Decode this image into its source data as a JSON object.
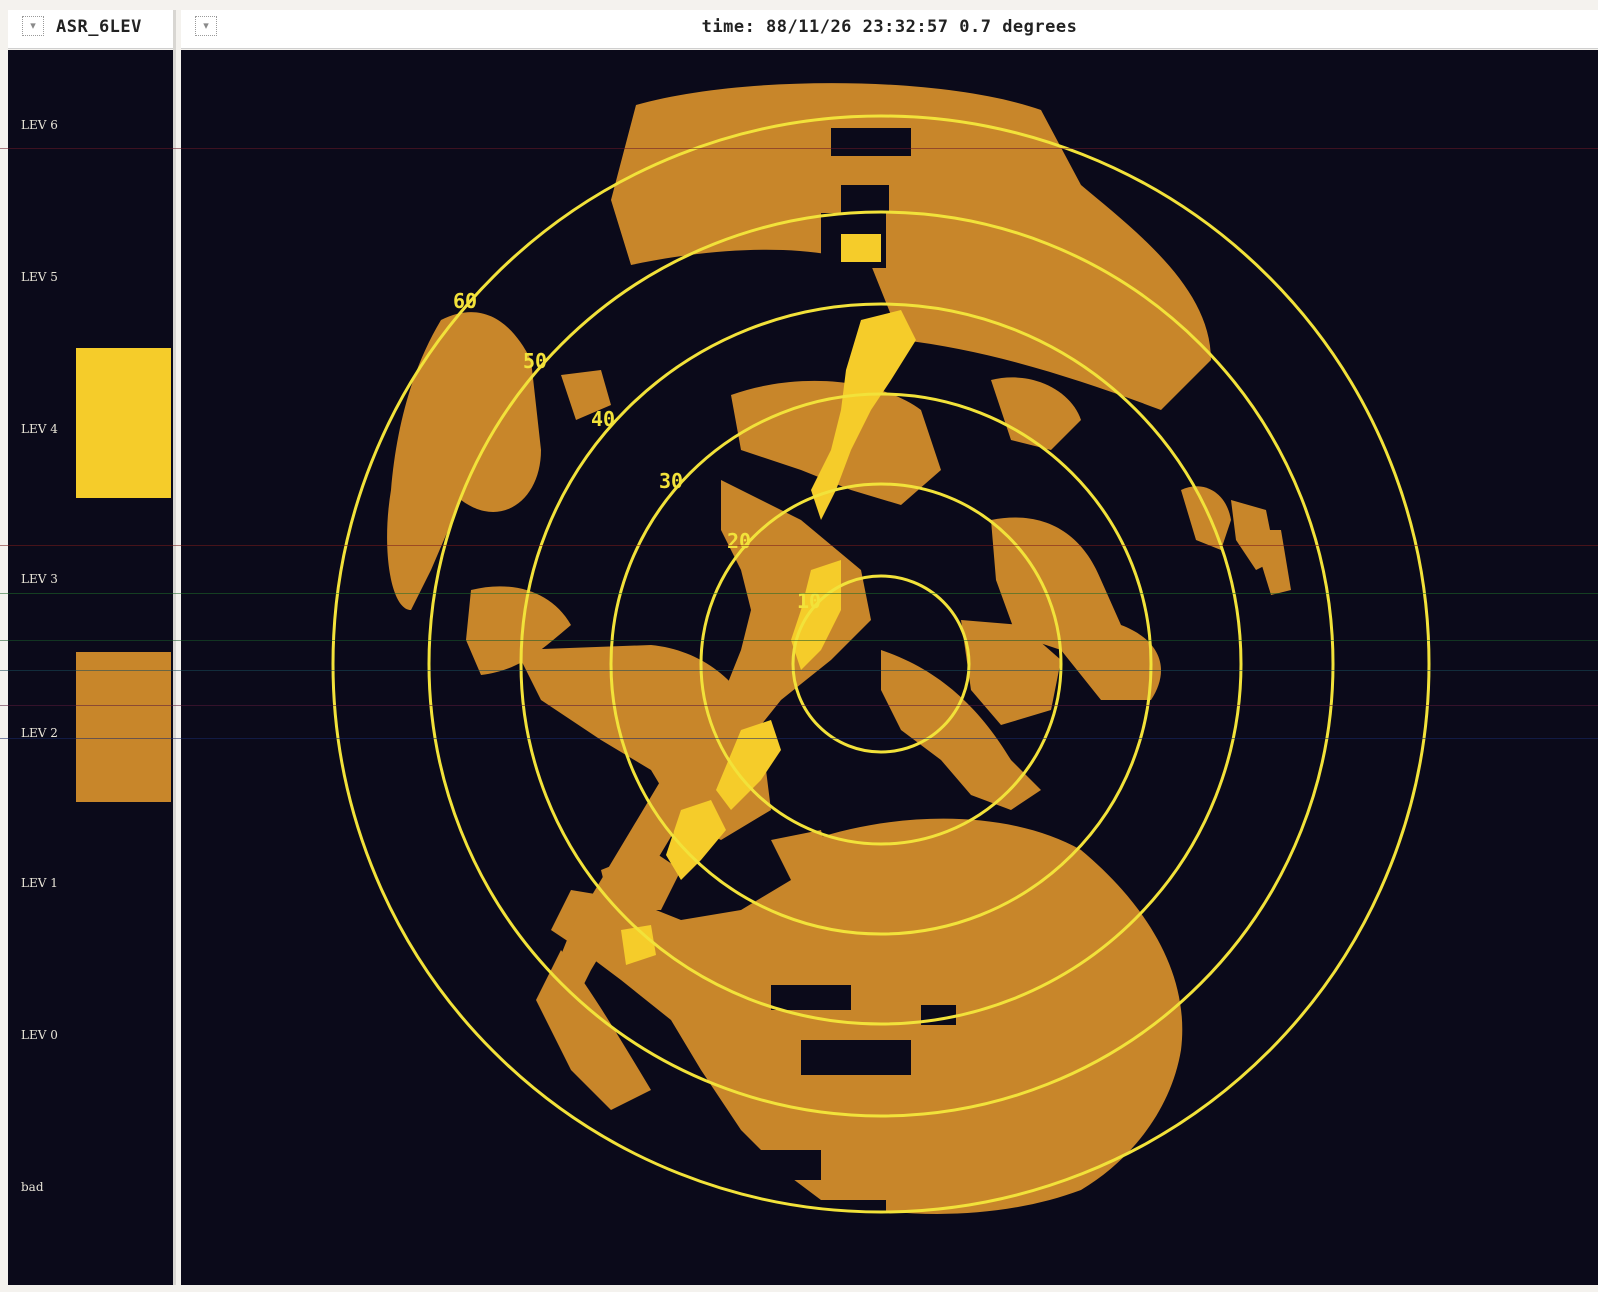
{
  "legend_window": {
    "title": "ASR_6LEV",
    "menu_glyph": "▾",
    "levels": [
      {
        "label": "LEV 6",
        "swatch_color": ""
      },
      {
        "label": "LEV 5",
        "swatch_color": ""
      },
      {
        "label": "LEV 4",
        "swatch_color": "#f5cc2a"
      },
      {
        "label": "LEV 3",
        "swatch_color": ""
      },
      {
        "label": "LEV 2",
        "swatch_color": "#c8862a"
      },
      {
        "label": "LEV 1",
        "swatch_color": ""
      },
      {
        "label": "LEV 0",
        "swatch_color": ""
      },
      {
        "label": "bad",
        "swatch_color": ""
      }
    ]
  },
  "radar_window": {
    "title": "time: 88/11/26 23:32:57 0.7 degrees",
    "menu_glyph": "▾",
    "range_ring_labels": [
      "10",
      "20",
      "30",
      "40",
      "50",
      "60"
    ],
    "colors": {
      "background": "#0b0a1a",
      "ring": "#f2e23a",
      "level2": "#c8862a",
      "level4": "#f5cc2a"
    }
  }
}
